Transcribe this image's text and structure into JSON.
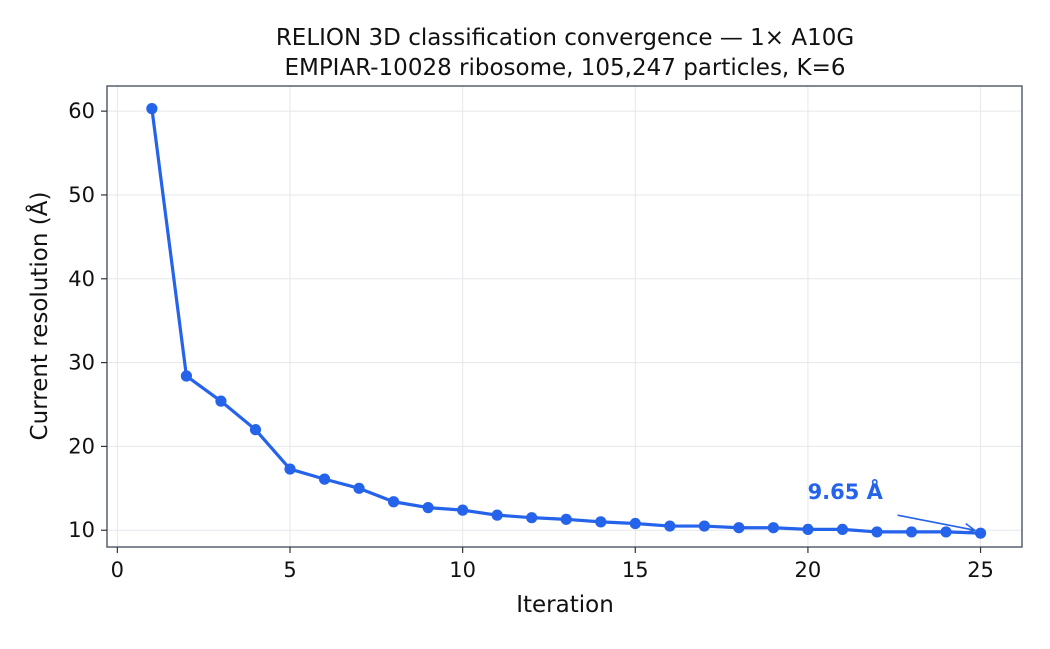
{
  "chart_data": {
    "type": "line",
    "title": "RELION 3D classification convergence — 1× A10G",
    "subtitle": "EMPIAR-10028 ribosome, 105,247 particles, K=6",
    "xlabel": "Iteration",
    "ylabel": "Current resolution (Å)",
    "xlim": [
      -0.3,
      26.2
    ],
    "ylim": [
      8.0,
      63.0
    ],
    "xticks": [
      0,
      5,
      10,
      15,
      20,
      25
    ],
    "yticks": [
      10,
      20,
      30,
      40,
      50,
      60
    ],
    "grid": true,
    "series": [
      {
        "color": "#2563eb",
        "x": [
          1,
          2,
          3,
          4,
          5,
          6,
          7,
          8,
          9,
          10,
          11,
          12,
          13,
          14,
          15,
          16,
          17,
          18,
          19,
          20,
          21,
          22,
          23,
          24,
          25
        ],
        "y": [
          60.3,
          28.4,
          25.4,
          22.0,
          17.3,
          16.1,
          15.0,
          13.4,
          12.7,
          12.4,
          11.8,
          11.5,
          11.3,
          11.0,
          10.8,
          10.5,
          10.5,
          10.3,
          10.3,
          10.1,
          10.1,
          9.8,
          9.8,
          9.8,
          9.65
        ]
      }
    ],
    "annotations": [
      {
        "text": "9.65 Å",
        "x": 25,
        "y": 9.65
      }
    ]
  }
}
